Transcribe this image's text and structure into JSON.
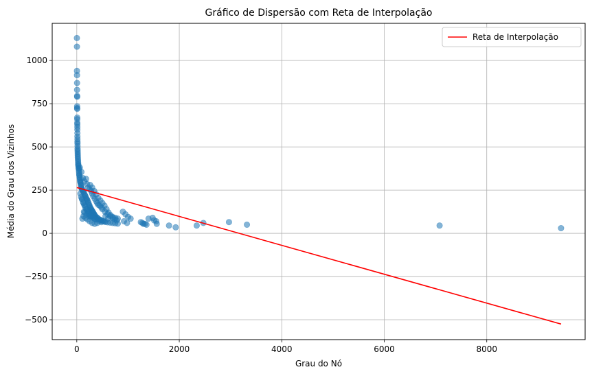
{
  "chart_data": {
    "type": "scatter",
    "title": "Gráfico de Dispersão com Reta de Interpolação",
    "xlabel": "Grau do Nó",
    "ylabel": "Média do Grau dos Vizinhos",
    "xlim": [
      -480,
      9920
    ],
    "ylim": [
      -615,
      1215
    ],
    "xticks": [
      0,
      2000,
      4000,
      6000,
      8000
    ],
    "yticks": [
      -500,
      -250,
      0,
      250,
      500,
      750,
      1000
    ],
    "grid": true,
    "legend_position": "top-right",
    "scatter_color": "#1f77b4",
    "line_color": "#ff0000",
    "series": [
      {
        "kind": "scatter",
        "points": [
          [
            2,
            1130
          ],
          [
            3,
            1080
          ],
          [
            3,
            940
          ],
          [
            4,
            915
          ],
          [
            5,
            870
          ],
          [
            5,
            830
          ],
          [
            6,
            795
          ],
          [
            7,
            790
          ],
          [
            6,
            735
          ],
          [
            7,
            725
          ],
          [
            8,
            720
          ],
          [
            8,
            670
          ],
          [
            9,
            660
          ],
          [
            9,
            640
          ],
          [
            10,
            630
          ],
          [
            11,
            615
          ],
          [
            11,
            600
          ],
          [
            12,
            580
          ],
          [
            12,
            560
          ],
          [
            13,
            545
          ],
          [
            13,
            530
          ],
          [
            14,
            520
          ],
          [
            15,
            505
          ],
          [
            15,
            490
          ],
          [
            16,
            480
          ],
          [
            17,
            470
          ],
          [
            18,
            460
          ],
          [
            19,
            450
          ],
          [
            20,
            440
          ],
          [
            22,
            430
          ],
          [
            24,
            420
          ],
          [
            26,
            410
          ],
          [
            28,
            400
          ],
          [
            30,
            395
          ],
          [
            32,
            390
          ],
          [
            35,
            380
          ],
          [
            38,
            375
          ],
          [
            40,
            370
          ],
          [
            42,
            360
          ],
          [
            45,
            350
          ],
          [
            48,
            340
          ],
          [
            50,
            335
          ],
          [
            55,
            325
          ],
          [
            58,
            320
          ],
          [
            60,
            310
          ],
          [
            65,
            300
          ],
          [
            70,
            295
          ],
          [
            75,
            290
          ],
          [
            80,
            280
          ],
          [
            85,
            275
          ],
          [
            90,
            265
          ],
          [
            95,
            260
          ],
          [
            100,
            255
          ],
          [
            110,
            250
          ],
          [
            120,
            245
          ],
          [
            130,
            240
          ],
          [
            140,
            235
          ],
          [
            150,
            225
          ],
          [
            160,
            220
          ],
          [
            170,
            215
          ],
          [
            180,
            205
          ],
          [
            190,
            200
          ],
          [
            200,
            195
          ],
          [
            210,
            190
          ],
          [
            220,
            180
          ],
          [
            230,
            175
          ],
          [
            240,
            165
          ],
          [
            250,
            160
          ],
          [
            260,
            150
          ],
          [
            270,
            145
          ],
          [
            280,
            140
          ],
          [
            290,
            135
          ],
          [
            300,
            130
          ],
          [
            310,
            125
          ],
          [
            320,
            120
          ],
          [
            330,
            115
          ],
          [
            340,
            110
          ],
          [
            350,
            105
          ],
          [
            360,
            100
          ],
          [
            380,
            95
          ],
          [
            400,
            90
          ],
          [
            420,
            85
          ],
          [
            440,
            80
          ],
          [
            460,
            78
          ],
          [
            480,
            75
          ],
          [
            500,
            72
          ],
          [
            520,
            70
          ],
          [
            540,
            68
          ],
          [
            560,
            66
          ],
          [
            600,
            64
          ],
          [
            650,
            62
          ],
          [
            700,
            60
          ],
          [
            750,
            58
          ],
          [
            800,
            56
          ],
          [
            60,
            380
          ],
          [
            90,
            355
          ],
          [
            120,
            320
          ],
          [
            150,
            300
          ],
          [
            180,
            315
          ],
          [
            200,
            285
          ],
          [
            220,
            265
          ],
          [
            250,
            255
          ],
          [
            280,
            245
          ],
          [
            300,
            230
          ],
          [
            320,
            215
          ],
          [
            350,
            200
          ],
          [
            380,
            185
          ],
          [
            400,
            175
          ],
          [
            420,
            165
          ],
          [
            450,
            160
          ],
          [
            480,
            150
          ],
          [
            500,
            140
          ],
          [
            550,
            125
          ],
          [
            600,
            110
          ],
          [
            650,
            100
          ],
          [
            700,
            95
          ],
          [
            750,
            90
          ],
          [
            800,
            85
          ],
          [
            100,
            200
          ],
          [
            130,
            175
          ],
          [
            160,
            160
          ],
          [
            200,
            140
          ],
          [
            240,
            125
          ],
          [
            280,
            115
          ],
          [
            320,
            100
          ],
          [
            360,
            90
          ],
          [
            400,
            80
          ],
          [
            440,
            70
          ],
          [
            480,
            65
          ],
          [
            130,
            100
          ],
          [
            170,
            90
          ],
          [
            210,
            80
          ],
          [
            250,
            70
          ],
          [
            300,
            60
          ],
          [
            350,
            55
          ],
          [
            400,
            60
          ],
          [
            150,
            120
          ],
          [
            190,
            110
          ],
          [
            230,
            100
          ],
          [
            270,
            95
          ],
          [
            110,
            85
          ],
          [
            140,
            125
          ],
          [
            70,
            230
          ],
          [
            85,
            210
          ],
          [
            105,
            195
          ],
          [
            125,
            180
          ],
          [
            145,
            165
          ],
          [
            165,
            150
          ],
          [
            185,
            140
          ],
          [
            205,
            130
          ],
          [
            225,
            120
          ],
          [
            245,
            110
          ],
          [
            265,
            105
          ],
          [
            285,
            100
          ],
          [
            305,
            95
          ],
          [
            325,
            90
          ],
          [
            345,
            85
          ],
          [
            365,
            80
          ],
          [
            260,
            280
          ],
          [
            300,
            265
          ],
          [
            340,
            245
          ],
          [
            380,
            225
          ],
          [
            420,
            205
          ],
          [
            460,
            190
          ],
          [
            500,
            175
          ],
          [
            540,
            160
          ],
          [
            580,
            140
          ],
          [
            620,
            120
          ],
          [
            660,
            105
          ],
          [
            700,
            90
          ],
          [
            740,
            80
          ],
          [
            780,
            75
          ],
          [
            560,
            100
          ],
          [
            610,
            85
          ],
          [
            900,
            125
          ],
          [
            950,
            110
          ],
          [
            1000,
            95
          ],
          [
            1050,
            85
          ],
          [
            920,
            70
          ],
          [
            980,
            60
          ],
          [
            1250,
            65
          ],
          [
            1280,
            60
          ],
          [
            1300,
            55
          ],
          [
            1330,
            55
          ],
          [
            1360,
            50
          ],
          [
            1400,
            85
          ],
          [
            1480,
            90
          ],
          [
            1510,
            75
          ],
          [
            1550,
            70
          ],
          [
            1560,
            55
          ],
          [
            1800,
            45
          ],
          [
            1930,
            35
          ],
          [
            2340,
            45
          ],
          [
            2470,
            60
          ],
          [
            2970,
            65
          ],
          [
            3320,
            50
          ],
          [
            7080,
            45
          ],
          [
            9450,
            30
          ]
        ]
      },
      {
        "kind": "line",
        "name": "Reta de Interpolação",
        "x": [
          0,
          9450
        ],
        "y": [
          265,
          -525
        ]
      }
    ]
  }
}
